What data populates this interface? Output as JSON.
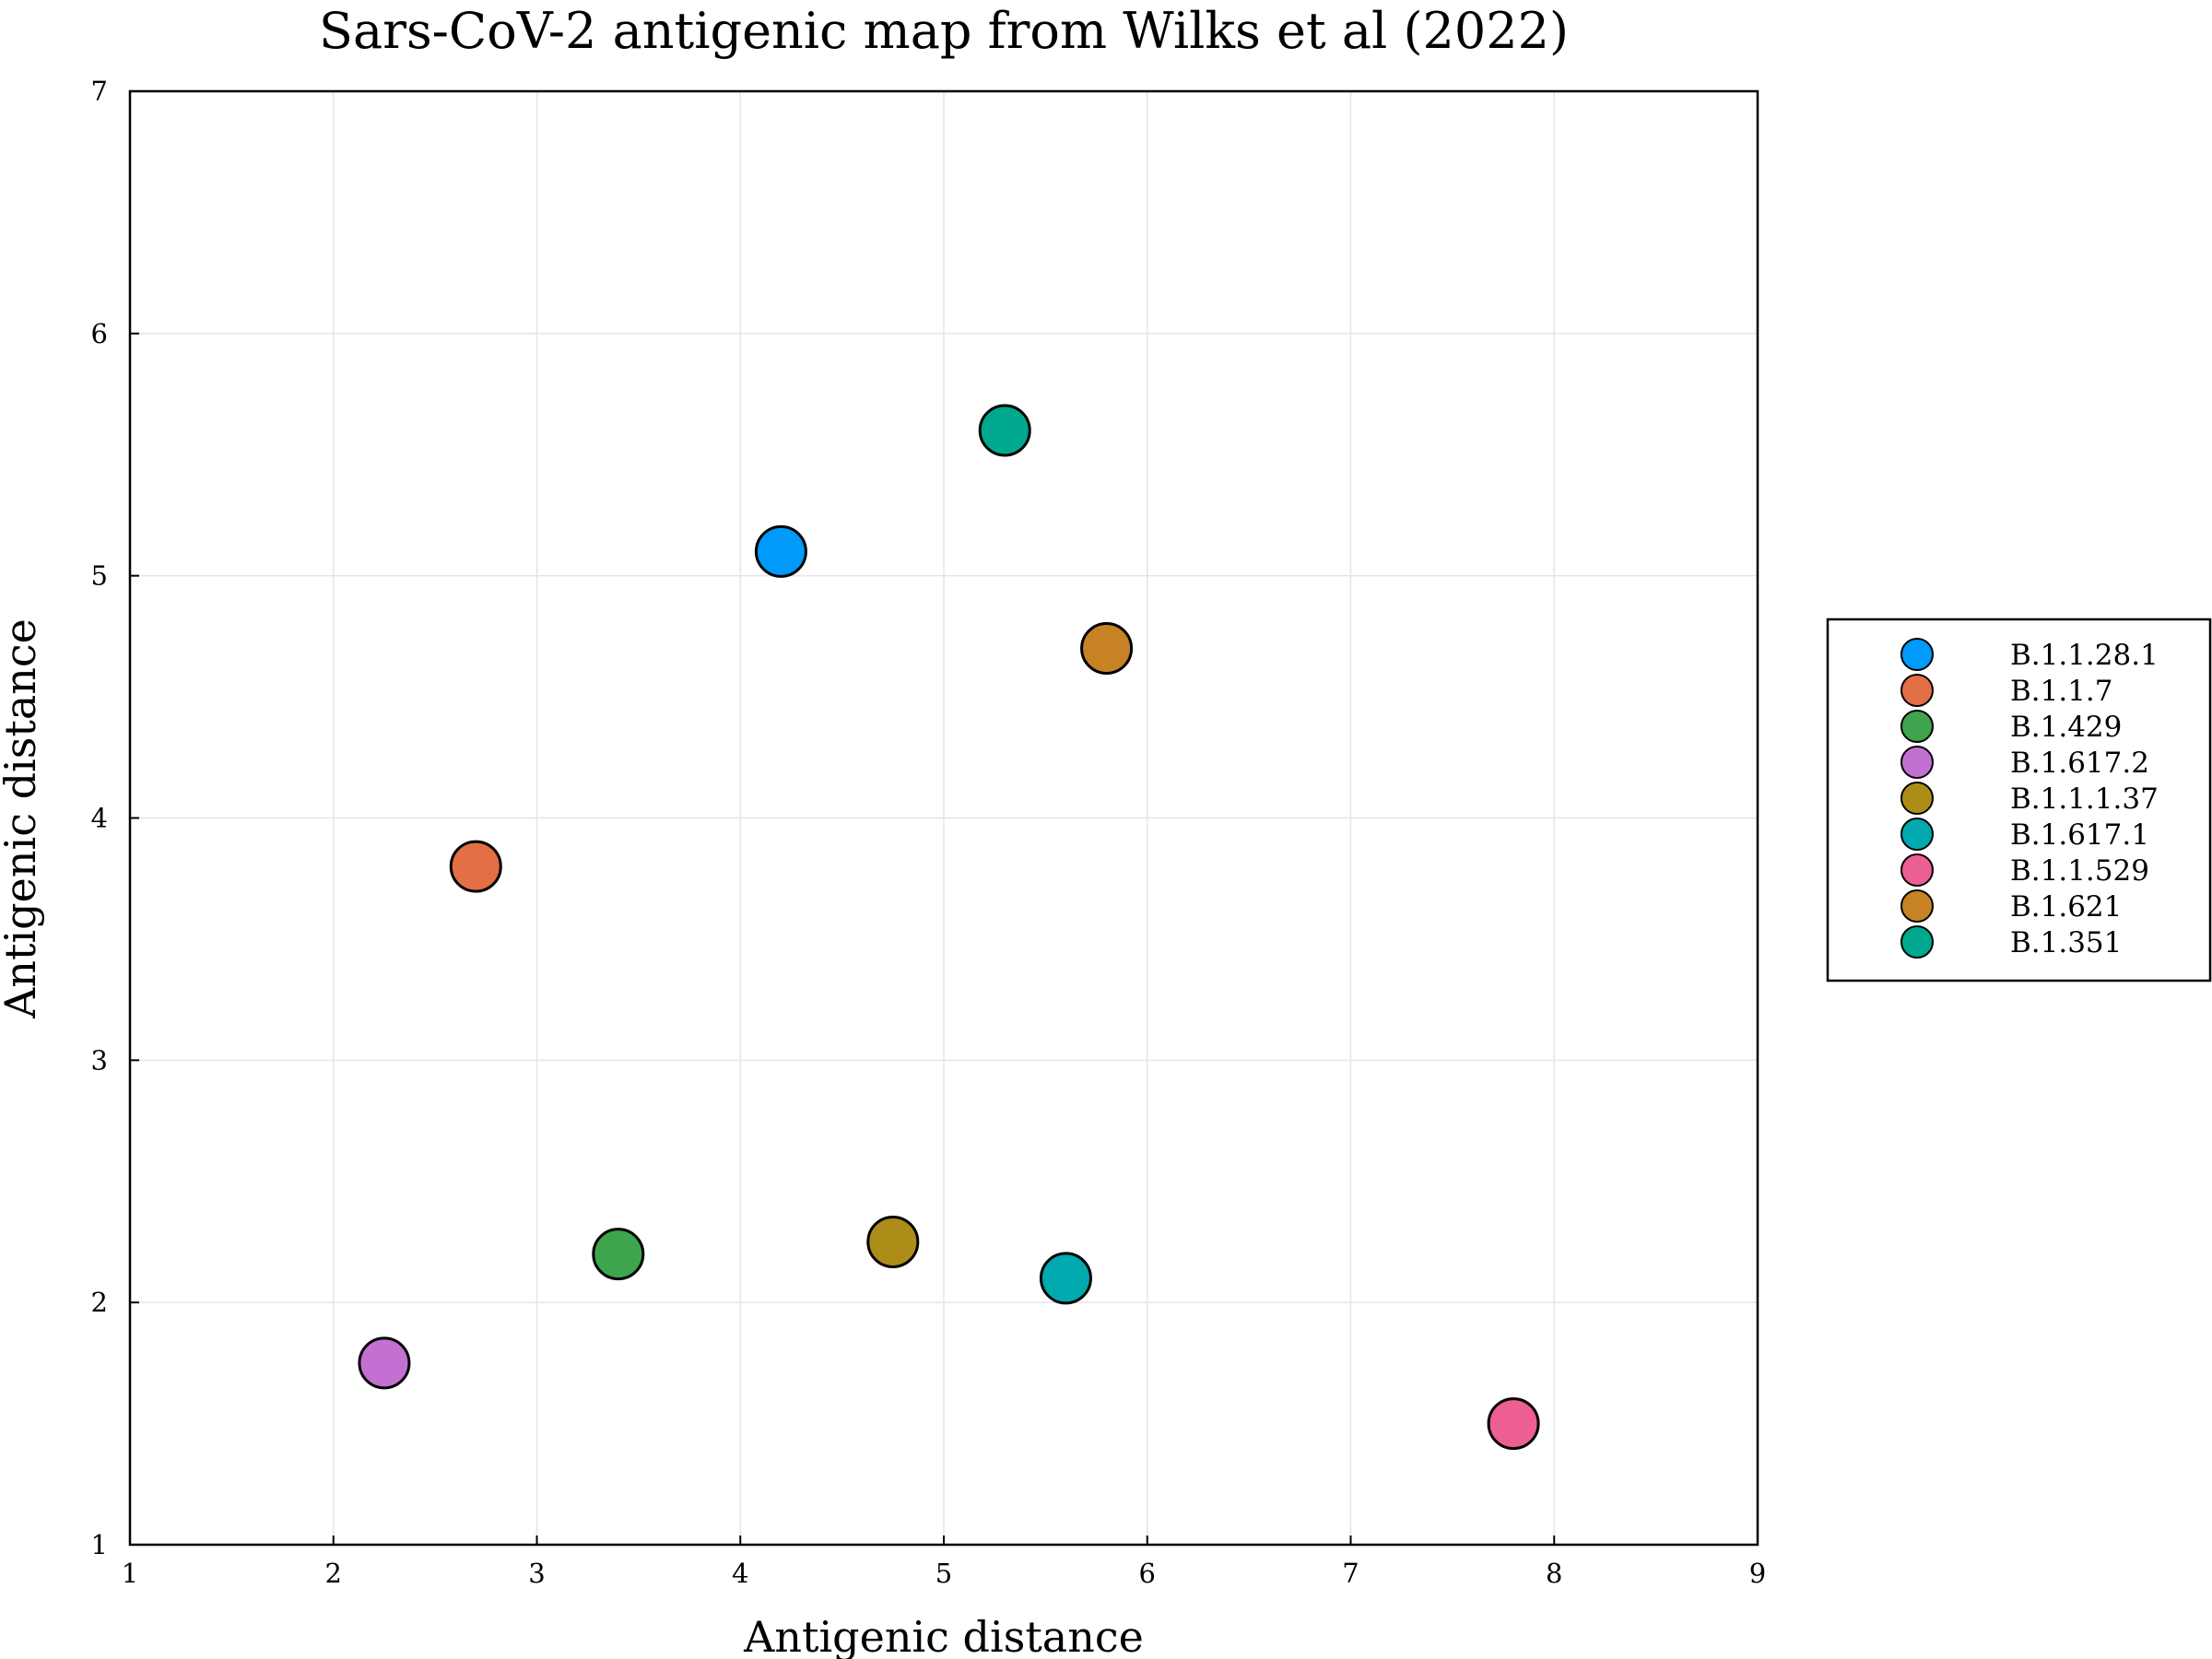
{
  "chart_data": {
    "type": "scatter",
    "title": "Sars-CoV-2 antigenic map from Wilks et al (2022)",
    "xlabel": "Antigenic distance",
    "ylabel": "Antigenic distance",
    "xlim": [
      1,
      9
    ],
    "ylim": [
      1,
      7
    ],
    "xticks": [
      1,
      2,
      3,
      4,
      5,
      6,
      7,
      8,
      9
    ],
    "yticks": [
      1,
      2,
      3,
      4,
      5,
      6,
      7
    ],
    "grid": true,
    "legend_position": "right",
    "series": [
      {
        "name": "B.1.1.28.1",
        "color": "#009AFA",
        "x": 4.2,
        "y": 5.1
      },
      {
        "name": "B.1.1.7",
        "color": "#E26F46",
        "x": 2.7,
        "y": 3.8
      },
      {
        "name": "B.1.429",
        "color": "#3EA44E",
        "x": 3.4,
        "y": 2.2
      },
      {
        "name": "B.1.617.2",
        "color": "#C271D2",
        "x": 2.25,
        "y": 1.75
      },
      {
        "name": "B.1.1.1.37",
        "color": "#AC8D18",
        "x": 4.75,
        "y": 2.25
      },
      {
        "name": "B.1.617.1",
        "color": "#00A9AD",
        "x": 5.6,
        "y": 2.1
      },
      {
        "name": "B.1.1.529",
        "color": "#ED5E93",
        "x": 7.8,
        "y": 1.5
      },
      {
        "name": "B.1.621",
        "color": "#C68225",
        "x": 5.8,
        "y": 4.7
      },
      {
        "name": "B.1.351",
        "color": "#00A98D",
        "x": 5.3,
        "y": 5.6
      }
    ]
  }
}
